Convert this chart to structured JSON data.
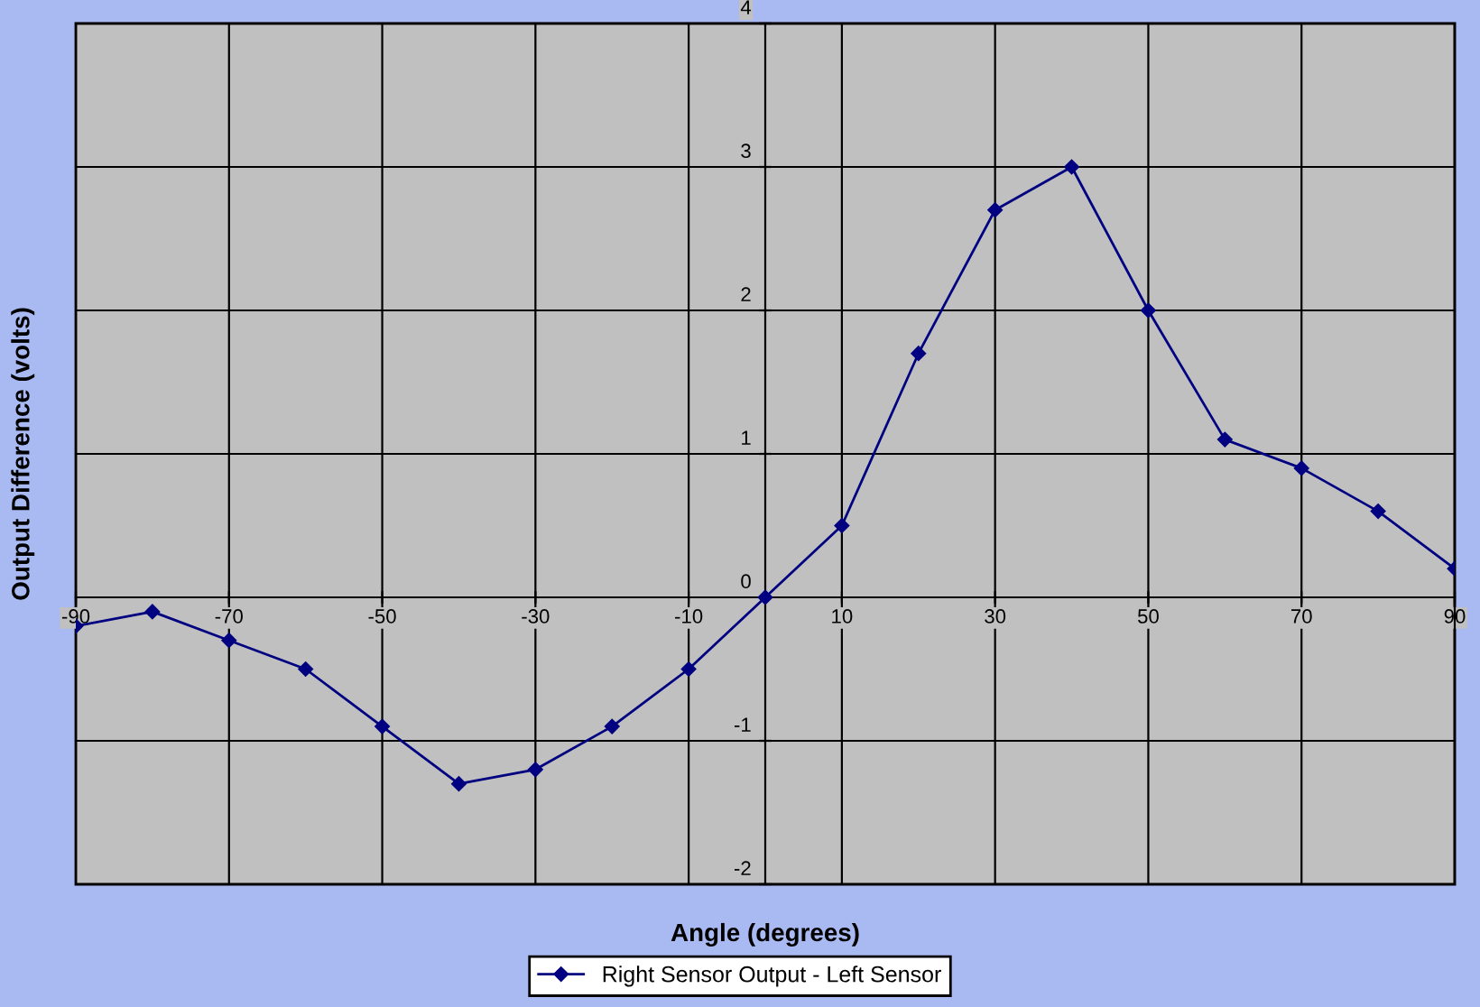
{
  "chart_data": {
    "type": "line",
    "xlabel": "Angle (degrees)",
    "ylabel": "Output Difference (volts)",
    "x": [
      -90,
      -80,
      -70,
      -60,
      -50,
      -40,
      -30,
      -20,
      -10,
      0,
      10,
      20,
      30,
      40,
      50,
      60,
      70,
      80,
      90
    ],
    "series": [
      {
        "name": "Right Sensor Output - Left Sensor",
        "color": "#000080",
        "values": [
          -0.2,
          -0.1,
          -0.3,
          -0.5,
          -0.9,
          -1.3,
          -1.2,
          -0.9,
          -0.5,
          0,
          0.5,
          1.7,
          2.7,
          3.0,
          2.0,
          1.1,
          0.9,
          0.6,
          0.2
        ]
      }
    ],
    "xlim": [
      -90,
      90
    ],
    "xticks": [
      -90,
      -70,
      -50,
      -30,
      -10,
      10,
      30,
      50,
      70,
      90
    ],
    "ylim": [
      -2,
      4
    ],
    "yticks": [
      -2,
      -1,
      0,
      1,
      2,
      3,
      4
    ],
    "grid": true,
    "legend": "bottom",
    "marker": "diamond",
    "line_style": "solid"
  }
}
